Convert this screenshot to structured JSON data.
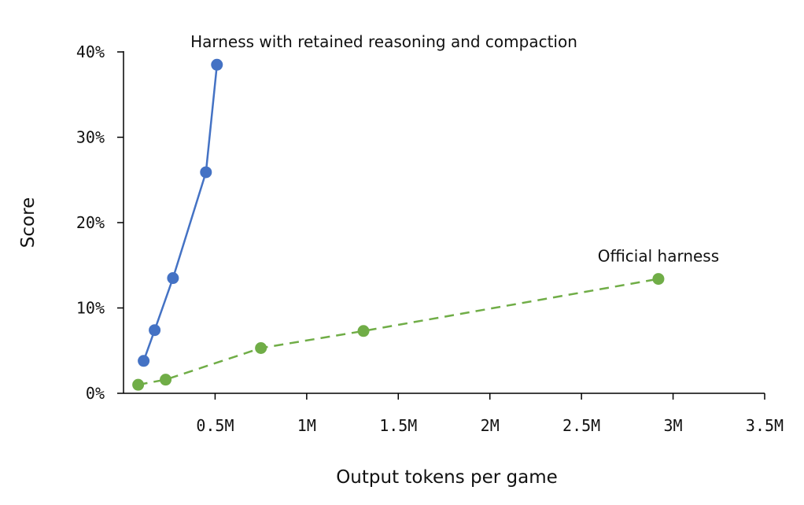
{
  "chart_data": {
    "type": "line",
    "xlabel": "Output tokens per game",
    "ylabel": "Score",
    "xlim": [
      0,
      3500000
    ],
    "ylim": [
      0,
      40
    ],
    "xticks": [
      500000,
      1000000,
      1500000,
      2000000,
      2500000,
      3000000,
      3500000
    ],
    "xtick_labels": [
      "0.5M",
      "1M",
      "1.5M",
      "2M",
      "2.5M",
      "3M",
      "3.5M"
    ],
    "yticks": [
      0,
      10,
      20,
      30,
      40
    ],
    "ytick_labels": [
      "0%",
      "10%",
      "20%",
      "30%",
      "40%"
    ],
    "grid": false,
    "legend": "none",
    "series": [
      {
        "name": "Harness with retained reasoning and compaction",
        "color": "#4472C4",
        "line_style": "solid",
        "points": [
          {
            "x": 110000,
            "y": 3.8
          },
          {
            "x": 170000,
            "y": 7.4
          },
          {
            "x": 270000,
            "y": 13.5
          },
          {
            "x": 450000,
            "y": 25.9
          },
          {
            "x": 510000,
            "y": 38.5
          }
        ]
      },
      {
        "name": "Official harness",
        "color": "#70AD47",
        "line_style": "dashed",
        "points": [
          {
            "x": 80000,
            "y": 1.0
          },
          {
            "x": 230000,
            "y": 1.6
          },
          {
            "x": 750000,
            "y": 5.3
          },
          {
            "x": 1310000,
            "y": 7.3
          },
          {
            "x": 2920000,
            "y": 13.4
          }
        ]
      }
    ]
  }
}
